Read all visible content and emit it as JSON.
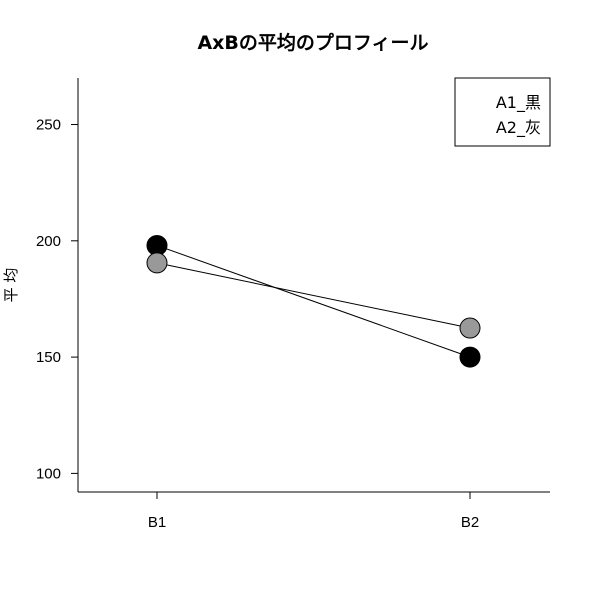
{
  "chart_data": {
    "type": "line",
    "title": "AxBの平均のプロフィール",
    "xlabel": "",
    "ylabel": "平 均",
    "categories": [
      "B1",
      "B2"
    ],
    "ylim": [
      92,
      270
    ],
    "yticks": [
      100,
      150,
      200,
      250
    ],
    "grid": false,
    "legend_position": "top-right",
    "series": [
      {
        "name": "A1_黒",
        "values": [
          198,
          150
        ],
        "color": "#000000"
      },
      {
        "name": "A2_灰",
        "values": [
          190.5,
          162.5
        ],
        "color": "#999999"
      }
    ]
  }
}
